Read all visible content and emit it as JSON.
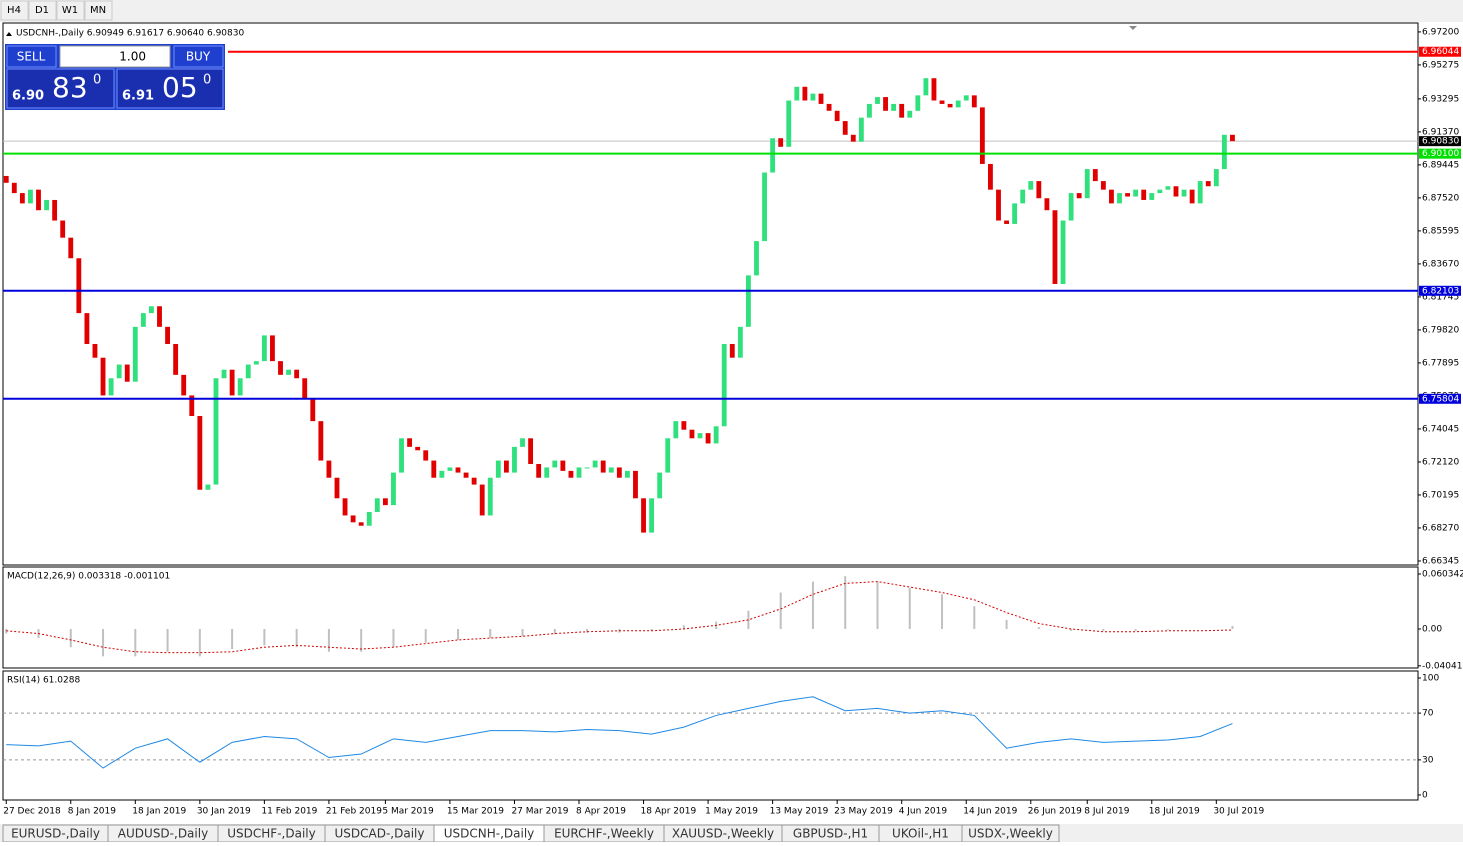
{
  "toolbar": [
    "H4",
    "D1",
    "W1",
    "MN"
  ],
  "trade_panel": {
    "sell": "SELL",
    "buy": "BUY",
    "lots": "1.00",
    "bid_big": "6.90",
    "bid_pips": "83",
    "bid_frac": "0",
    "ask_big": "6.91",
    "ask_pips": "05",
    "ask_frac": "0"
  },
  "tabs": [
    "EURUSD-,Daily",
    "AUDUSD-,Daily",
    "USDCHF-,Daily",
    "USDCAD-,Daily",
    "USDCNH-,Daily",
    "EURCHF-,Weekly",
    "XAUUSD-,Weekly",
    "GBPUSD-,H1",
    "UKOil-,H1",
    "USDX-,Weekly"
  ],
  "active_tab": 4,
  "chart_data": [
    {
      "type": "candlestick",
      "title": "USDCNH-,Daily  6.90949 6.91617 6.90640 6.90830",
      "first_open": 6.888,
      "values": [
        6.884,
        6.878,
        6.872,
        6.88,
        6.868,
        6.874,
        6.862,
        6.852,
        6.84,
        6.808,
        6.79,
        6.782,
        6.76,
        6.77,
        6.778,
        6.768,
        6.8,
        6.808,
        6.812,
        6.8,
        6.79,
        6.772,
        6.76,
        6.748,
        6.705,
        6.708,
        6.77,
        6.775,
        6.76,
        6.77,
        6.778,
        6.78,
        6.795,
        6.78,
        6.772,
        6.775,
        6.77,
        6.758,
        6.745,
        6.722,
        6.712,
        6.7,
        6.69,
        6.686,
        6.684,
        6.692,
        6.7,
        6.696,
        6.715,
        6.735,
        6.73,
        6.728,
        6.722,
        6.712,
        6.716,
        6.718,
        6.715,
        6.712,
        6.708,
        6.69,
        6.712,
        6.722,
        6.715,
        6.73,
        6.735,
        6.72,
        6.712,
        6.718,
        6.722,
        6.716,
        6.712,
        6.718,
        6.718,
        6.722,
        6.715,
        6.718,
        6.712,
        6.716,
        6.7,
        6.68,
        6.7,
        6.715,
        6.735,
        6.745,
        6.74,
        6.735,
        6.738,
        6.732,
        6.742,
        6.79,
        6.782,
        6.8,
        6.83,
        6.85,
        6.89,
        6.91,
        6.905,
        6.932,
        6.94,
        6.932,
        6.936,
        6.93,
        6.926,
        6.92,
        6.912,
        6.908,
        6.922,
        6.93,
        6.934,
        6.926,
        6.93,
        6.922,
        6.926,
        6.935,
        6.945,
        6.932,
        6.93,
        6.928,
        6.932,
        6.935,
        6.928,
        6.895,
        6.88,
        6.862,
        6.86,
        6.872,
        6.88,
        6.885,
        6.875,
        6.868,
        6.825,
        6.862,
        6.878,
        6.875,
        6.892,
        6.885,
        6.88,
        6.872,
        6.878,
        6.876,
        6.88,
        6.874,
        6.878,
        6.88,
        6.882,
        6.876,
        6.88,
        6.872,
        6.885,
        6.882,
        6.892,
        6.912,
        6.9083
      ],
      "up_color": "#2fe07c",
      "down_color": "#e00000",
      "xlim": [
        -0.4,
        175
      ],
      "xticks": [
        {
          "value": 0,
          "label": "27 Dec 2018"
        },
        {
          "value": 8,
          "label": "8 Jan 2019"
        },
        {
          "value": 16,
          "label": "18 Jan 2019"
        },
        {
          "value": 24,
          "label": "30 Jan 2019"
        },
        {
          "value": 32,
          "label": "11 Feb 2019"
        },
        {
          "value": 40,
          "label": "21 Feb 2019"
        },
        {
          "value": 47,
          "label": "5 Mar 2019"
        },
        {
          "value": 55,
          "label": "15 Mar 2019"
        },
        {
          "value": 63,
          "label": "27 Mar 2019"
        },
        {
          "value": 71,
          "label": "8 Apr 2019"
        },
        {
          "value": 79,
          "label": "18 Apr 2019"
        },
        {
          "value": 87,
          "label": "1 May 2019"
        },
        {
          "value": 95,
          "label": "13 May 2019"
        },
        {
          "value": 103,
          "label": "23 May 2019"
        },
        {
          "value": 111,
          "label": "4 Jun 2019"
        },
        {
          "value": 119,
          "label": "14 Jun 2019"
        },
        {
          "value": 127,
          "label": "26 Jun 2019"
        },
        {
          "value": 134,
          "label": "8 Jul 2019"
        },
        {
          "value": 142,
          "label": "18 Jul 2019"
        },
        {
          "value": 150,
          "label": "30 Jul 2019"
        }
      ],
      "ylim": [
        6.6611,
        6.9772
      ],
      "yticks": [
        {
          "value": 6.972,
          "label": "6.97200"
        },
        6.95275,
        6.93295,
        {
          "value": 6.9137,
          "label": "6.91370"
        },
        6.89445,
        {
          "value": 6.8752,
          "label": "6.87520"
        },
        6.85595,
        {
          "value": 6.8367,
          "label": "6.83670"
        },
        6.81745,
        {
          "value": 6.7982,
          "label": "6.79820"
        },
        6.77895,
        {
          "value": 6.7597,
          "label": "6.75970"
        },
        6.74045,
        {
          "value": 6.7212,
          "label": "6.72120"
        },
        6.70195,
        {
          "value": 6.6827,
          "label": "6.68270"
        },
        6.66345
      ],
      "levels": [
        {
          "value": 6.96044,
          "color": "#ff0000"
        },
        {
          "value": {
            "value": 6.901,
            "label": "6.90100"
          },
          "color": "#00e000"
        },
        {
          "value": 6.82103,
          "color": "#0000dd"
        },
        {
          "value": 6.75804,
          "color": "#0000dd"
        }
      ],
      "current_price": {
        "value": 6.9083,
        "label": "6.90830"
      }
    },
    {
      "type": "macd",
      "title": "MACD(12,26,9) 0.003318 -0.001101",
      "x": [
        0,
        4,
        8,
        12,
        16,
        20,
        24,
        28,
        32,
        36,
        40,
        44,
        48,
        52,
        56,
        60,
        64,
        68,
        72,
        76,
        80,
        84,
        88,
        92,
        96,
        100,
        104,
        108,
        112,
        116,
        120,
        124,
        128,
        132,
        136,
        140,
        144,
        148,
        152
      ],
      "values": [
        -0.005,
        -0.01,
        -0.02,
        -0.03,
        -0.03,
        -0.025,
        -0.03,
        -0.022,
        -0.018,
        -0.02,
        -0.025,
        -0.025,
        -0.02,
        -0.015,
        -0.012,
        -0.01,
        -0.008,
        -0.006,
        -0.004,
        -0.004,
        -0.002,
        0.004,
        0.008,
        0.02,
        0.04,
        0.052,
        0.058,
        0.052,
        0.045,
        0.038,
        0.025,
        0.01,
        0.002,
        -0.002,
        -0.002,
        -0.002,
        -0.001,
        0.0,
        0.003318
      ],
      "signal": [
        -0.002,
        -0.005,
        -0.012,
        -0.02,
        -0.025,
        -0.026,
        -0.026,
        -0.025,
        -0.02,
        -0.018,
        -0.02,
        -0.022,
        -0.02,
        -0.016,
        -0.012,
        -0.01,
        -0.008,
        -0.005,
        -0.003,
        -0.002,
        -0.002,
        0.0,
        0.004,
        0.01,
        0.022,
        0.038,
        0.05,
        0.052,
        0.046,
        0.04,
        0.032,
        0.018,
        0.006,
        0.0,
        -0.003,
        -0.003,
        -0.002,
        -0.002,
        -0.001101
      ],
      "color": "#c0c0c0",
      "signal_color": "#d00000",
      "ylim": [
        -0.0428,
        0.068
      ],
      "yticks": [
        0.060342,
        {
          "value": 0,
          "label": "0.00"
        },
        -0.040415
      ]
    },
    {
      "type": "rsi",
      "title": "RSI(14) 61.0288",
      "x": [
        0,
        4,
        8,
        12,
        16,
        20,
        24,
        28,
        32,
        36,
        40,
        44,
        48,
        52,
        56,
        60,
        64,
        68,
        72,
        76,
        80,
        84,
        88,
        92,
        96,
        100,
        104,
        108,
        112,
        116,
        120,
        124,
        128,
        132,
        136,
        140,
        144,
        148,
        152
      ],
      "values": [
        43,
        42,
        46,
        23,
        40,
        48,
        28,
        45,
        50,
        48,
        32,
        35,
        48,
        45,
        50,
        55,
        55,
        54,
        56,
        55,
        52,
        58,
        68,
        74,
        80,
        84,
        72,
        74,
        70,
        72,
        68,
        40,
        45,
        48,
        45,
        46,
        47,
        50,
        61.0288
      ],
      "color": "#1e88e5",
      "ylim": [
        -4.3,
        106
      ],
      "yticks": [
        100,
        70,
        30,
        0
      ],
      "dashed_levels": [
        70,
        30
      ]
    }
  ]
}
